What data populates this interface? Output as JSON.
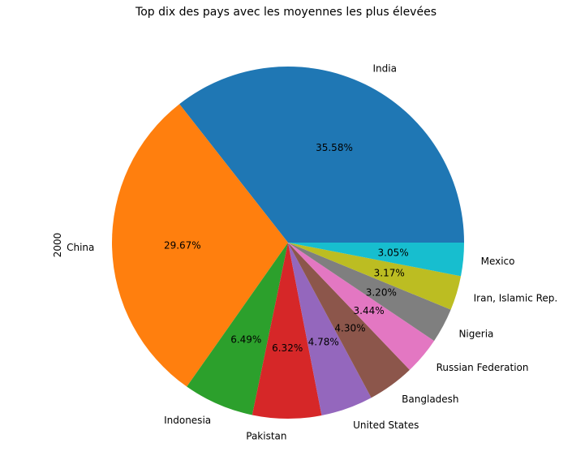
{
  "chart_data": {
    "type": "pie",
    "title": "Top dix des pays avec les moyennes les plus élevées",
    "ylabel": "2000",
    "slices": [
      {
        "label": "India",
        "pct_label": "35.58%",
        "value": 35.58,
        "color": "#1f77b4"
      },
      {
        "label": "China",
        "pct_label": "29.67%",
        "value": 29.67,
        "color": "#ff7f0e"
      },
      {
        "label": "Indonesia",
        "pct_label": "6.49%",
        "value": 6.49,
        "color": "#2ca02c"
      },
      {
        "label": "Pakistan",
        "pct_label": "6.32%",
        "value": 6.32,
        "color": "#d62728"
      },
      {
        "label": "United States",
        "pct_label": "4.78%",
        "value": 4.78,
        "color": "#9467bd"
      },
      {
        "label": "Bangladesh",
        "pct_label": "4.30%",
        "value": 4.3,
        "color": "#8c564b"
      },
      {
        "label": "Russian Federation",
        "pct_label": "3.44%",
        "value": 3.44,
        "color": "#e377c2"
      },
      {
        "label": "Nigeria",
        "pct_label": "3.20%",
        "value": 3.2,
        "color": "#7f7f7f"
      },
      {
        "label": "Iran, Islamic Rep.",
        "pct_label": "3.17%",
        "value": 3.17,
        "color": "#bcbd22"
      },
      {
        "label": "Mexico",
        "pct_label": "3.05%",
        "value": 3.05,
        "color": "#17becf"
      }
    ]
  }
}
